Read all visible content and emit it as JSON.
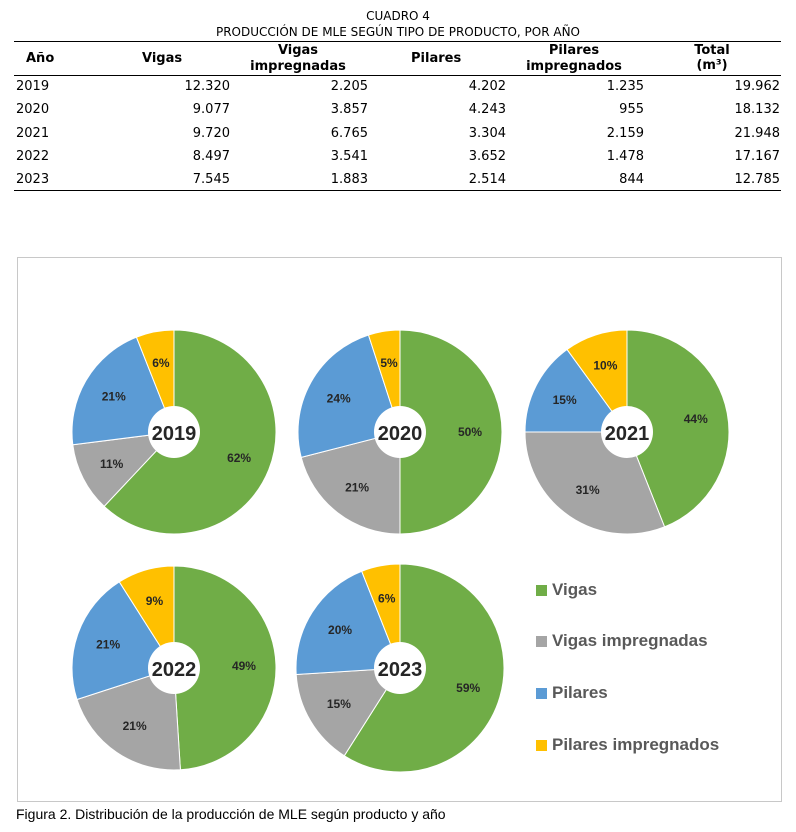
{
  "table": {
    "caption_line1": "CUADRO 4",
    "caption_line2": "PRODUCCIÓN DE MLE SEGÚN TIPO DE PRODUCTO, POR AÑO",
    "headers": {
      "year": "Año",
      "vigas": "Vigas",
      "vigas_imp_1": "Vigas",
      "vigas_imp_2": "impregnadas",
      "pilares": "Pilares",
      "pilares_imp_1": "Pilares",
      "pilares_imp_2": "impregnados",
      "total_1": "Total",
      "total_2": "(m³)"
    },
    "rows": [
      {
        "year": "2019",
        "vigas": "12.320",
        "vigas_imp": "2.205",
        "pilares": "4.202",
        "pilares_imp": "1.235",
        "total": "19.962"
      },
      {
        "year": "2020",
        "vigas": "9.077",
        "vigas_imp": "3.857",
        "pilares": "4.243",
        "pilares_imp": "955",
        "total": "18.132"
      },
      {
        "year": "2021",
        "vigas": "9.720",
        "vigas_imp": "6.765",
        "pilares": "3.304",
        "pilares_imp": "2.159",
        "total": "21.948"
      },
      {
        "year": "2022",
        "vigas": "8.497",
        "vigas_imp": "3.541",
        "pilares": "3.652",
        "pilares_imp": "1.478",
        "total": "17.167"
      },
      {
        "year": "2023",
        "vigas": "7.545",
        "vigas_imp": "1.883",
        "pilares": "2.514",
        "pilares_imp": "844",
        "total": "12.785"
      }
    ]
  },
  "colors": {
    "Vigas": "#70ad47",
    "Vigas impregnadas": "#a5a5a5",
    "Pilares": "#5b9bd5",
    "Pilares impregnados": "#ffc000"
  },
  "chart_data": {
    "type": "pie",
    "variant": "donut",
    "categories": [
      "Vigas",
      "Vigas impregnadas",
      "Pilares",
      "Pilares impregnados"
    ],
    "pies": [
      {
        "label": "2019",
        "values": [
          62,
          11,
          21,
          6
        ]
      },
      {
        "label": "2020",
        "values": [
          50,
          21,
          24,
          5
        ]
      },
      {
        "label": "2021",
        "values": [
          44,
          31,
          15,
          10
        ]
      },
      {
        "label": "2022",
        "values": [
          49,
          21,
          21,
          9
        ]
      },
      {
        "label": "2023",
        "values": [
          59,
          15,
          20,
          6
        ]
      }
    ],
    "value_suffix": "%",
    "legend_position": "right"
  },
  "figure_caption": "Figura 2. Distribución de la producción de MLE según producto y año"
}
